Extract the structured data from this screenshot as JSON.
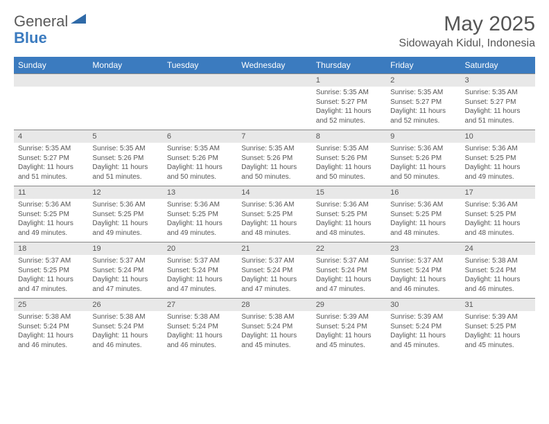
{
  "logo": {
    "part1": "General",
    "part2": "Blue",
    "shape_color": "#2f6aa8"
  },
  "title": "May 2025",
  "location": "Sidowayah Kidul, Indonesia",
  "colors": {
    "header_bg": "#3b7bbf",
    "header_text": "#ffffff",
    "date_row_bg": "#e8e8e8",
    "text": "#555555",
    "border": "#888888"
  },
  "day_names": [
    "Sunday",
    "Monday",
    "Tuesday",
    "Wednesday",
    "Thursday",
    "Friday",
    "Saturday"
  ],
  "weeks": [
    [
      null,
      null,
      null,
      null,
      {
        "d": "1",
        "sr": "5:35 AM",
        "ss": "5:27 PM",
        "dl": "11 hours and 52 minutes."
      },
      {
        "d": "2",
        "sr": "5:35 AM",
        "ss": "5:27 PM",
        "dl": "11 hours and 52 minutes."
      },
      {
        "d": "3",
        "sr": "5:35 AM",
        "ss": "5:27 PM",
        "dl": "11 hours and 51 minutes."
      }
    ],
    [
      {
        "d": "4",
        "sr": "5:35 AM",
        "ss": "5:27 PM",
        "dl": "11 hours and 51 minutes."
      },
      {
        "d": "5",
        "sr": "5:35 AM",
        "ss": "5:26 PM",
        "dl": "11 hours and 51 minutes."
      },
      {
        "d": "6",
        "sr": "5:35 AM",
        "ss": "5:26 PM",
        "dl": "11 hours and 50 minutes."
      },
      {
        "d": "7",
        "sr": "5:35 AM",
        "ss": "5:26 PM",
        "dl": "11 hours and 50 minutes."
      },
      {
        "d": "8",
        "sr": "5:35 AM",
        "ss": "5:26 PM",
        "dl": "11 hours and 50 minutes."
      },
      {
        "d": "9",
        "sr": "5:36 AM",
        "ss": "5:26 PM",
        "dl": "11 hours and 50 minutes."
      },
      {
        "d": "10",
        "sr": "5:36 AM",
        "ss": "5:25 PM",
        "dl": "11 hours and 49 minutes."
      }
    ],
    [
      {
        "d": "11",
        "sr": "5:36 AM",
        "ss": "5:25 PM",
        "dl": "11 hours and 49 minutes."
      },
      {
        "d": "12",
        "sr": "5:36 AM",
        "ss": "5:25 PM",
        "dl": "11 hours and 49 minutes."
      },
      {
        "d": "13",
        "sr": "5:36 AM",
        "ss": "5:25 PM",
        "dl": "11 hours and 49 minutes."
      },
      {
        "d": "14",
        "sr": "5:36 AM",
        "ss": "5:25 PM",
        "dl": "11 hours and 48 minutes."
      },
      {
        "d": "15",
        "sr": "5:36 AM",
        "ss": "5:25 PM",
        "dl": "11 hours and 48 minutes."
      },
      {
        "d": "16",
        "sr": "5:36 AM",
        "ss": "5:25 PM",
        "dl": "11 hours and 48 minutes."
      },
      {
        "d": "17",
        "sr": "5:36 AM",
        "ss": "5:25 PM",
        "dl": "11 hours and 48 minutes."
      }
    ],
    [
      {
        "d": "18",
        "sr": "5:37 AM",
        "ss": "5:25 PM",
        "dl": "11 hours and 47 minutes."
      },
      {
        "d": "19",
        "sr": "5:37 AM",
        "ss": "5:24 PM",
        "dl": "11 hours and 47 minutes."
      },
      {
        "d": "20",
        "sr": "5:37 AM",
        "ss": "5:24 PM",
        "dl": "11 hours and 47 minutes."
      },
      {
        "d": "21",
        "sr": "5:37 AM",
        "ss": "5:24 PM",
        "dl": "11 hours and 47 minutes."
      },
      {
        "d": "22",
        "sr": "5:37 AM",
        "ss": "5:24 PM",
        "dl": "11 hours and 47 minutes."
      },
      {
        "d": "23",
        "sr": "5:37 AM",
        "ss": "5:24 PM",
        "dl": "11 hours and 46 minutes."
      },
      {
        "d": "24",
        "sr": "5:38 AM",
        "ss": "5:24 PM",
        "dl": "11 hours and 46 minutes."
      }
    ],
    [
      {
        "d": "25",
        "sr": "5:38 AM",
        "ss": "5:24 PM",
        "dl": "11 hours and 46 minutes."
      },
      {
        "d": "26",
        "sr": "5:38 AM",
        "ss": "5:24 PM",
        "dl": "11 hours and 46 minutes."
      },
      {
        "d": "27",
        "sr": "5:38 AM",
        "ss": "5:24 PM",
        "dl": "11 hours and 46 minutes."
      },
      {
        "d": "28",
        "sr": "5:38 AM",
        "ss": "5:24 PM",
        "dl": "11 hours and 45 minutes."
      },
      {
        "d": "29",
        "sr": "5:39 AM",
        "ss": "5:24 PM",
        "dl": "11 hours and 45 minutes."
      },
      {
        "d": "30",
        "sr": "5:39 AM",
        "ss": "5:24 PM",
        "dl": "11 hours and 45 minutes."
      },
      {
        "d": "31",
        "sr": "5:39 AM",
        "ss": "5:25 PM",
        "dl": "11 hours and 45 minutes."
      }
    ]
  ],
  "labels": {
    "sunrise": "Sunrise:",
    "sunset": "Sunset:",
    "daylight": "Daylight:"
  }
}
